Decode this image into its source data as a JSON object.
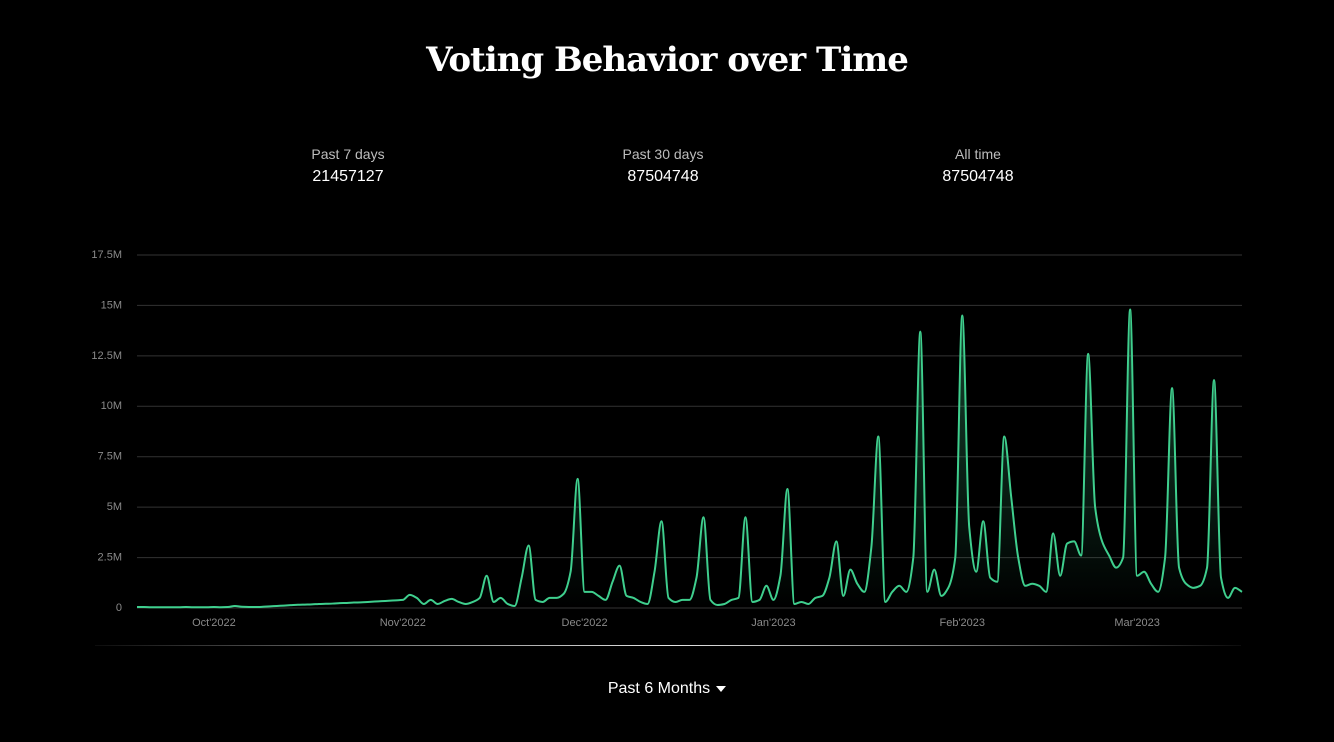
{
  "title": "Voting Behavior over Time",
  "stats": [
    {
      "label": "Past 7 days",
      "value": 21457127
    },
    {
      "label": "Past 30 days",
      "value": 87504748
    },
    {
      "label": "All time",
      "value": 87504748
    }
  ],
  "range_selector": "Past 6 Months",
  "chart_data": {
    "type": "area",
    "categories": [
      null,
      null,
      null,
      null,
      null,
      null,
      null,
      null,
      null,
      null,
      null,
      "Oct'2022",
      null,
      null,
      null,
      null,
      null,
      null,
      null,
      null,
      null,
      null,
      null,
      null,
      null,
      null,
      null,
      null,
      null,
      null,
      null,
      null,
      null,
      null,
      null,
      null,
      null,
      null,
      "Nov'2022",
      null,
      null,
      null,
      null,
      null,
      null,
      null,
      null,
      null,
      null,
      null,
      null,
      null,
      null,
      null,
      null,
      null,
      null,
      null,
      null,
      null,
      null,
      null,
      null,
      null,
      "Dec'2022",
      null,
      null,
      null,
      null,
      null,
      null,
      null,
      null,
      null,
      null,
      null,
      null,
      null,
      null,
      null,
      null,
      null,
      null,
      null,
      null,
      null,
      null,
      null,
      null,
      null,
      null,
      "Jan'2023",
      null,
      null,
      null,
      null,
      null,
      null,
      null,
      null,
      null,
      null,
      null,
      null,
      null,
      null,
      null,
      null,
      null,
      null,
      null,
      null,
      null,
      null,
      null,
      null,
      null,
      null,
      "Feb'2023",
      null,
      null,
      null,
      null,
      null,
      null,
      null,
      null,
      null,
      null,
      null,
      null,
      null,
      null,
      null,
      null,
      null,
      null,
      null,
      null,
      null,
      null,
      null,
      null,
      "Mar'2023",
      null,
      null,
      null,
      null,
      null,
      null,
      null,
      null,
      null,
      null,
      null,
      null,
      null,
      null,
      null
    ],
    "series": [
      {
        "color": "#3fcf8e",
        "values": [
          50000,
          50000,
          40000,
          40000,
          40000,
          40000,
          40000,
          50000,
          40000,
          40000,
          40000,
          50000,
          40000,
          50000,
          100000,
          60000,
          50000,
          50000,
          60000,
          80000,
          100000,
          120000,
          140000,
          160000,
          170000,
          180000,
          200000,
          210000,
          220000,
          240000,
          250000,
          270000,
          280000,
          300000,
          320000,
          340000,
          360000,
          380000,
          400000,
          650000,
          500000,
          200000,
          400000,
          200000,
          350000,
          450000,
          300000,
          200000,
          300000,
          500000,
          1600000,
          300000,
          500000,
          200000,
          100000,
          1500000,
          3100000,
          400000,
          300000,
          500000,
          500000,
          700000,
          1800000,
          6400000,
          800000,
          800000,
          600000,
          400000,
          1300000,
          2100000,
          600000,
          500000,
          300000,
          200000,
          1800000,
          4300000,
          500000,
          300000,
          400000,
          400000,
          1500000,
          4500000,
          400000,
          150000,
          200000,
          400000,
          500000,
          4500000,
          300000,
          400000,
          1100000,
          400000,
          1600000,
          5900000,
          200000,
          300000,
          200000,
          500000,
          600000,
          1500000,
          3300000,
          600000,
          1900000,
          1200000,
          800000,
          3000000,
          8500000,
          300000,
          800000,
          1100000,
          800000,
          2500000,
          13700000,
          800000,
          1900000,
          600000,
          1000000,
          2500000,
          14500000,
          4000000,
          1800000,
          4300000,
          1500000,
          1300000,
          8500000,
          5500000,
          2500000,
          1100000,
          1200000,
          1100000,
          800000,
          3700000,
          1600000,
          3200000,
          3300000,
          2600000,
          12600000,
          5000000,
          3300000,
          2600000,
          2000000,
          2500000,
          14800000,
          1600000,
          1800000,
          1200000,
          800000,
          2500000,
          10900000,
          2000000,
          1200000,
          1000000,
          1100000,
          2000000,
          11300000,
          1500000,
          500000,
          1000000,
          800000
        ]
      }
    ],
    "ylim": [
      0,
      17500000
    ],
    "yticks": [
      0,
      {
        "value": 2500000,
        "label": "2.5M"
      },
      {
        "value": 5000000,
        "label": "5M"
      },
      {
        "value": 7500000,
        "label": "7.5M"
      },
      {
        "value": 10000000,
        "label": "10M"
      },
      {
        "value": 12500000,
        "label": "12.5M"
      },
      {
        "value": 15000000,
        "label": "15M"
      },
      {
        "value": 17500000,
        "label": "17.5M"
      }
    ],
    "grid": true
  }
}
